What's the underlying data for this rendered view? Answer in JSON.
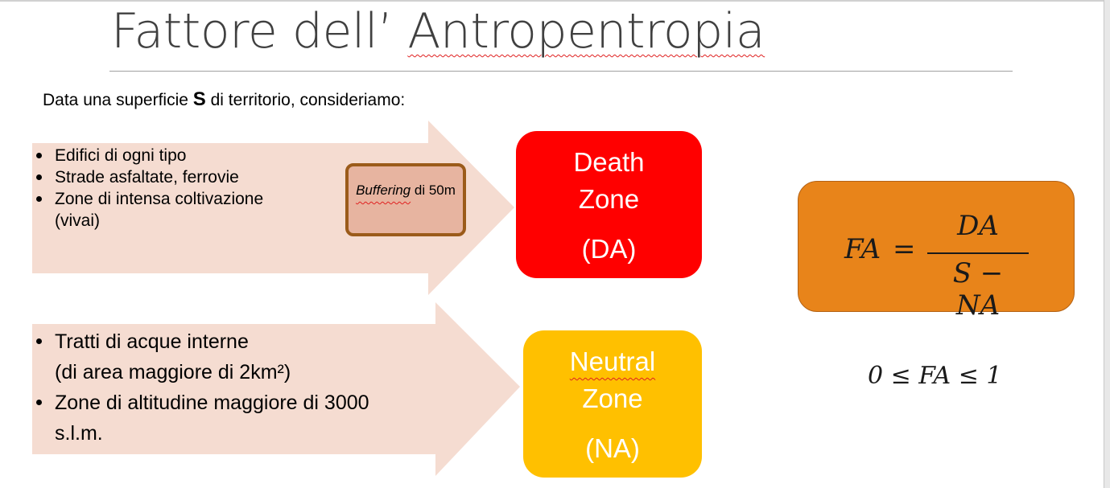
{
  "slide": {
    "title": "Fattore dell’ Antropentropia",
    "intro": {
      "before": "Data una superficie ",
      "bold": "S",
      "after": " di territorio, consideriamo:"
    },
    "death_group": {
      "items": [
        "Edifici di ogni tipo",
        "Strade asfaltate, ferrovie",
        "Zone di intensa coltivazione (vivai)"
      ],
      "buffer": {
        "italic": "Buffering",
        "rest": " di 50m"
      }
    },
    "neutral_group": {
      "items": [
        "Tratti di acque interne (di area maggiore di 2km²)",
        "Zone di altitudine maggiore di 3000 s.l.m."
      ]
    },
    "death_zone": {
      "line1": "Death",
      "line2": "Zone",
      "abbr": "(DA)"
    },
    "neutral_zone": {
      "line1": "Neutral",
      "line2": "Zone",
      "abbr": "(NA)"
    },
    "formula": {
      "lhs": "FA",
      "eq": "=",
      "numerator": "DA",
      "denominator": "S − NA"
    },
    "inequality": "0 ≤ FA ≤ 1"
  },
  "colors": {
    "death_zone": "#ff0000",
    "neutral_zone": "#ffc000",
    "formula_box": "#e8841a",
    "arrow_fill": "#f5dcd1",
    "buffer_box": "#e7b4a0",
    "buffer_border": "#9b5b1a",
    "spellcheck_underline": "#e02020"
  }
}
